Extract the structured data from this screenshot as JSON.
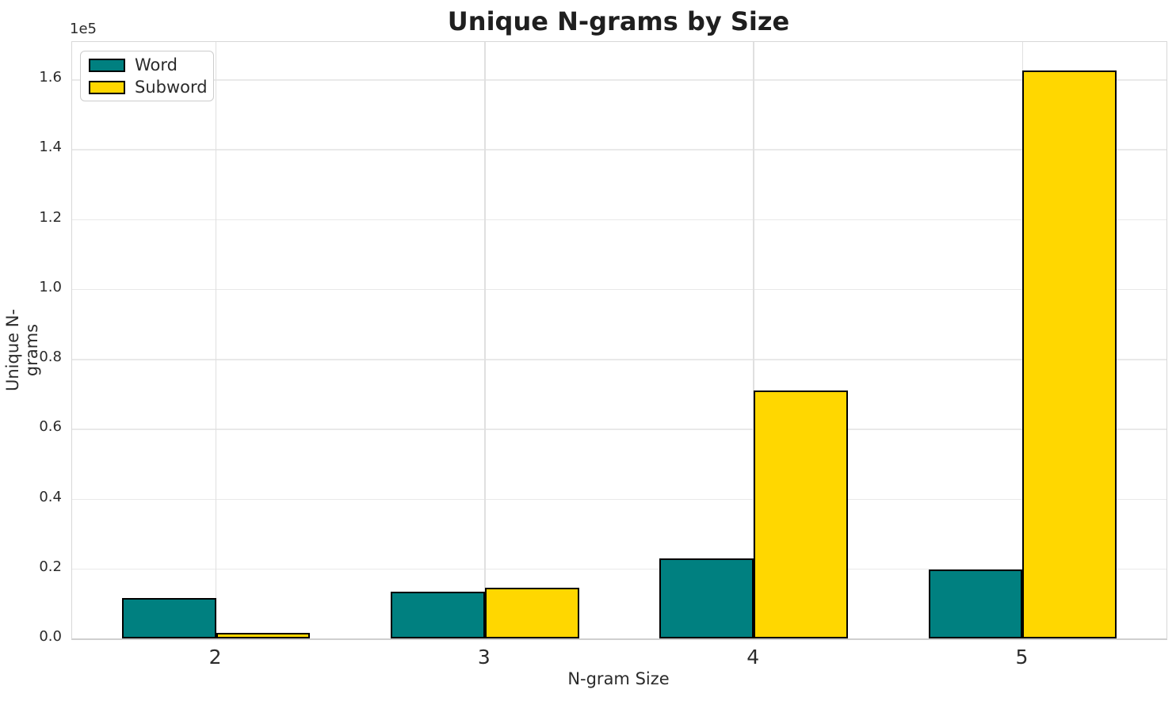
{
  "chart_data": {
    "type": "bar",
    "title": "Unique N-grams by Size",
    "xlabel": "N-gram Size",
    "ylabel": "Unique N-grams",
    "y_offset_label": "1e5",
    "categories": [
      "2",
      "3",
      "4",
      "5"
    ],
    "series": [
      {
        "name": "Word",
        "color": "#008080",
        "values": [
          11500,
          13300,
          22800,
          19700
        ]
      },
      {
        "name": "Subword",
        "color": "#FFD700",
        "values": [
          1650,
          14600,
          70900,
          162600
        ]
      }
    ],
    "bar_edge_color": "#000000",
    "bar_width_data_units": 0.35,
    "x_tick_labels": [
      "2",
      "3",
      "4",
      "5"
    ],
    "y_tick_labels": [
      "0.0",
      "0.2",
      "0.4",
      "0.6",
      "0.8",
      "1.0",
      "1.2",
      "1.4",
      "1.6"
    ],
    "y_tick_values": [
      0,
      20000,
      40000,
      60000,
      80000,
      100000,
      120000,
      140000,
      160000
    ],
    "xlim": [
      1.465,
      5.535
    ],
    "ylim": [
      0,
      170700
    ],
    "grid": true,
    "legend_position": "upper left"
  },
  "colors": {
    "word_fill": "#008080",
    "subword_fill": "#FFD700",
    "bar_edge": "#000000",
    "grid_line": "#e6e6e6",
    "spine": "#d8d8d8",
    "text": "#2b2b2b",
    "title_text": "#1f1f1f",
    "background": "#ffffff"
  }
}
